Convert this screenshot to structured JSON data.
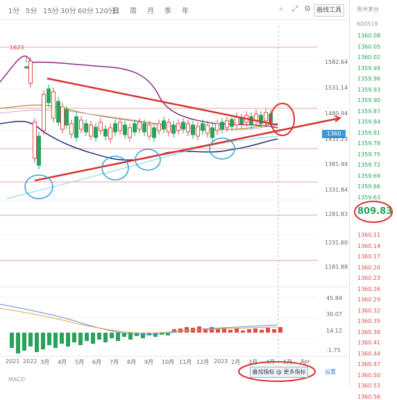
{
  "toolbar": {
    "timeframes": [
      "1分",
      "5分",
      "15分",
      "30分",
      "60分",
      "120分",
      "日",
      "周",
      "月",
      "季",
      "年"
    ],
    "active_index": 6,
    "button_label": "画线工具"
  },
  "price_axis": {
    "labels": [
      "1582.64",
      "1531.14",
      "1480.94",
      "1431.23",
      "1381.49",
      "1331.84",
      "1281.83",
      "1231.60",
      "1181.88"
    ],
    "high_marker": "1623"
  },
  "macd_axis": {
    "labels": [
      "45.84",
      "30.07",
      "14.12",
      "-1.75"
    ]
  },
  "highlight_label": "1360",
  "date_labels": [
    "2021",
    "2022",
    "3月",
    "4月",
    "5月",
    "6月",
    "7月",
    "8月",
    "9月",
    "10月",
    "11月",
    "12月",
    "2023",
    "2月",
    "3月",
    "4月",
    "5月",
    "Apr"
  ],
  "sidebar": {
    "title": "贵州茅台",
    "subtitle": "600519",
    "quotes_green": [
      "1360.08",
      "1360.05",
      "1360.02",
      "1359.99",
      "1359.96",
      "1359.93",
      "1359.90",
      "1359.87",
      "1359.84",
      "1359.81",
      "1359.78",
      "1359.75",
      "1359.72",
      "1359.69",
      "1359.66",
      "1359.63"
    ],
    "price": "809.83",
    "quotes_red": [
      "1360.11",
      "1360.14",
      "1360.17",
      "1360.20",
      "1360.23",
      "1360.26",
      "1360.29",
      "1360.32",
      "1360.35",
      "1360.38",
      "1360.41",
      "1360.44",
      "1360.47",
      "1360.50",
      "1360.53",
      "1360.56"
    ]
  },
  "bottom": {
    "button_label": "叠加指标 @ 更多指标",
    "left_text": "MACD",
    "right_text": "设置"
  },
  "colors": {
    "bull": "#27a35a",
    "bear": "#e24a4a",
    "annotation": "#d93232",
    "circle": "#2f9fd8"
  }
}
